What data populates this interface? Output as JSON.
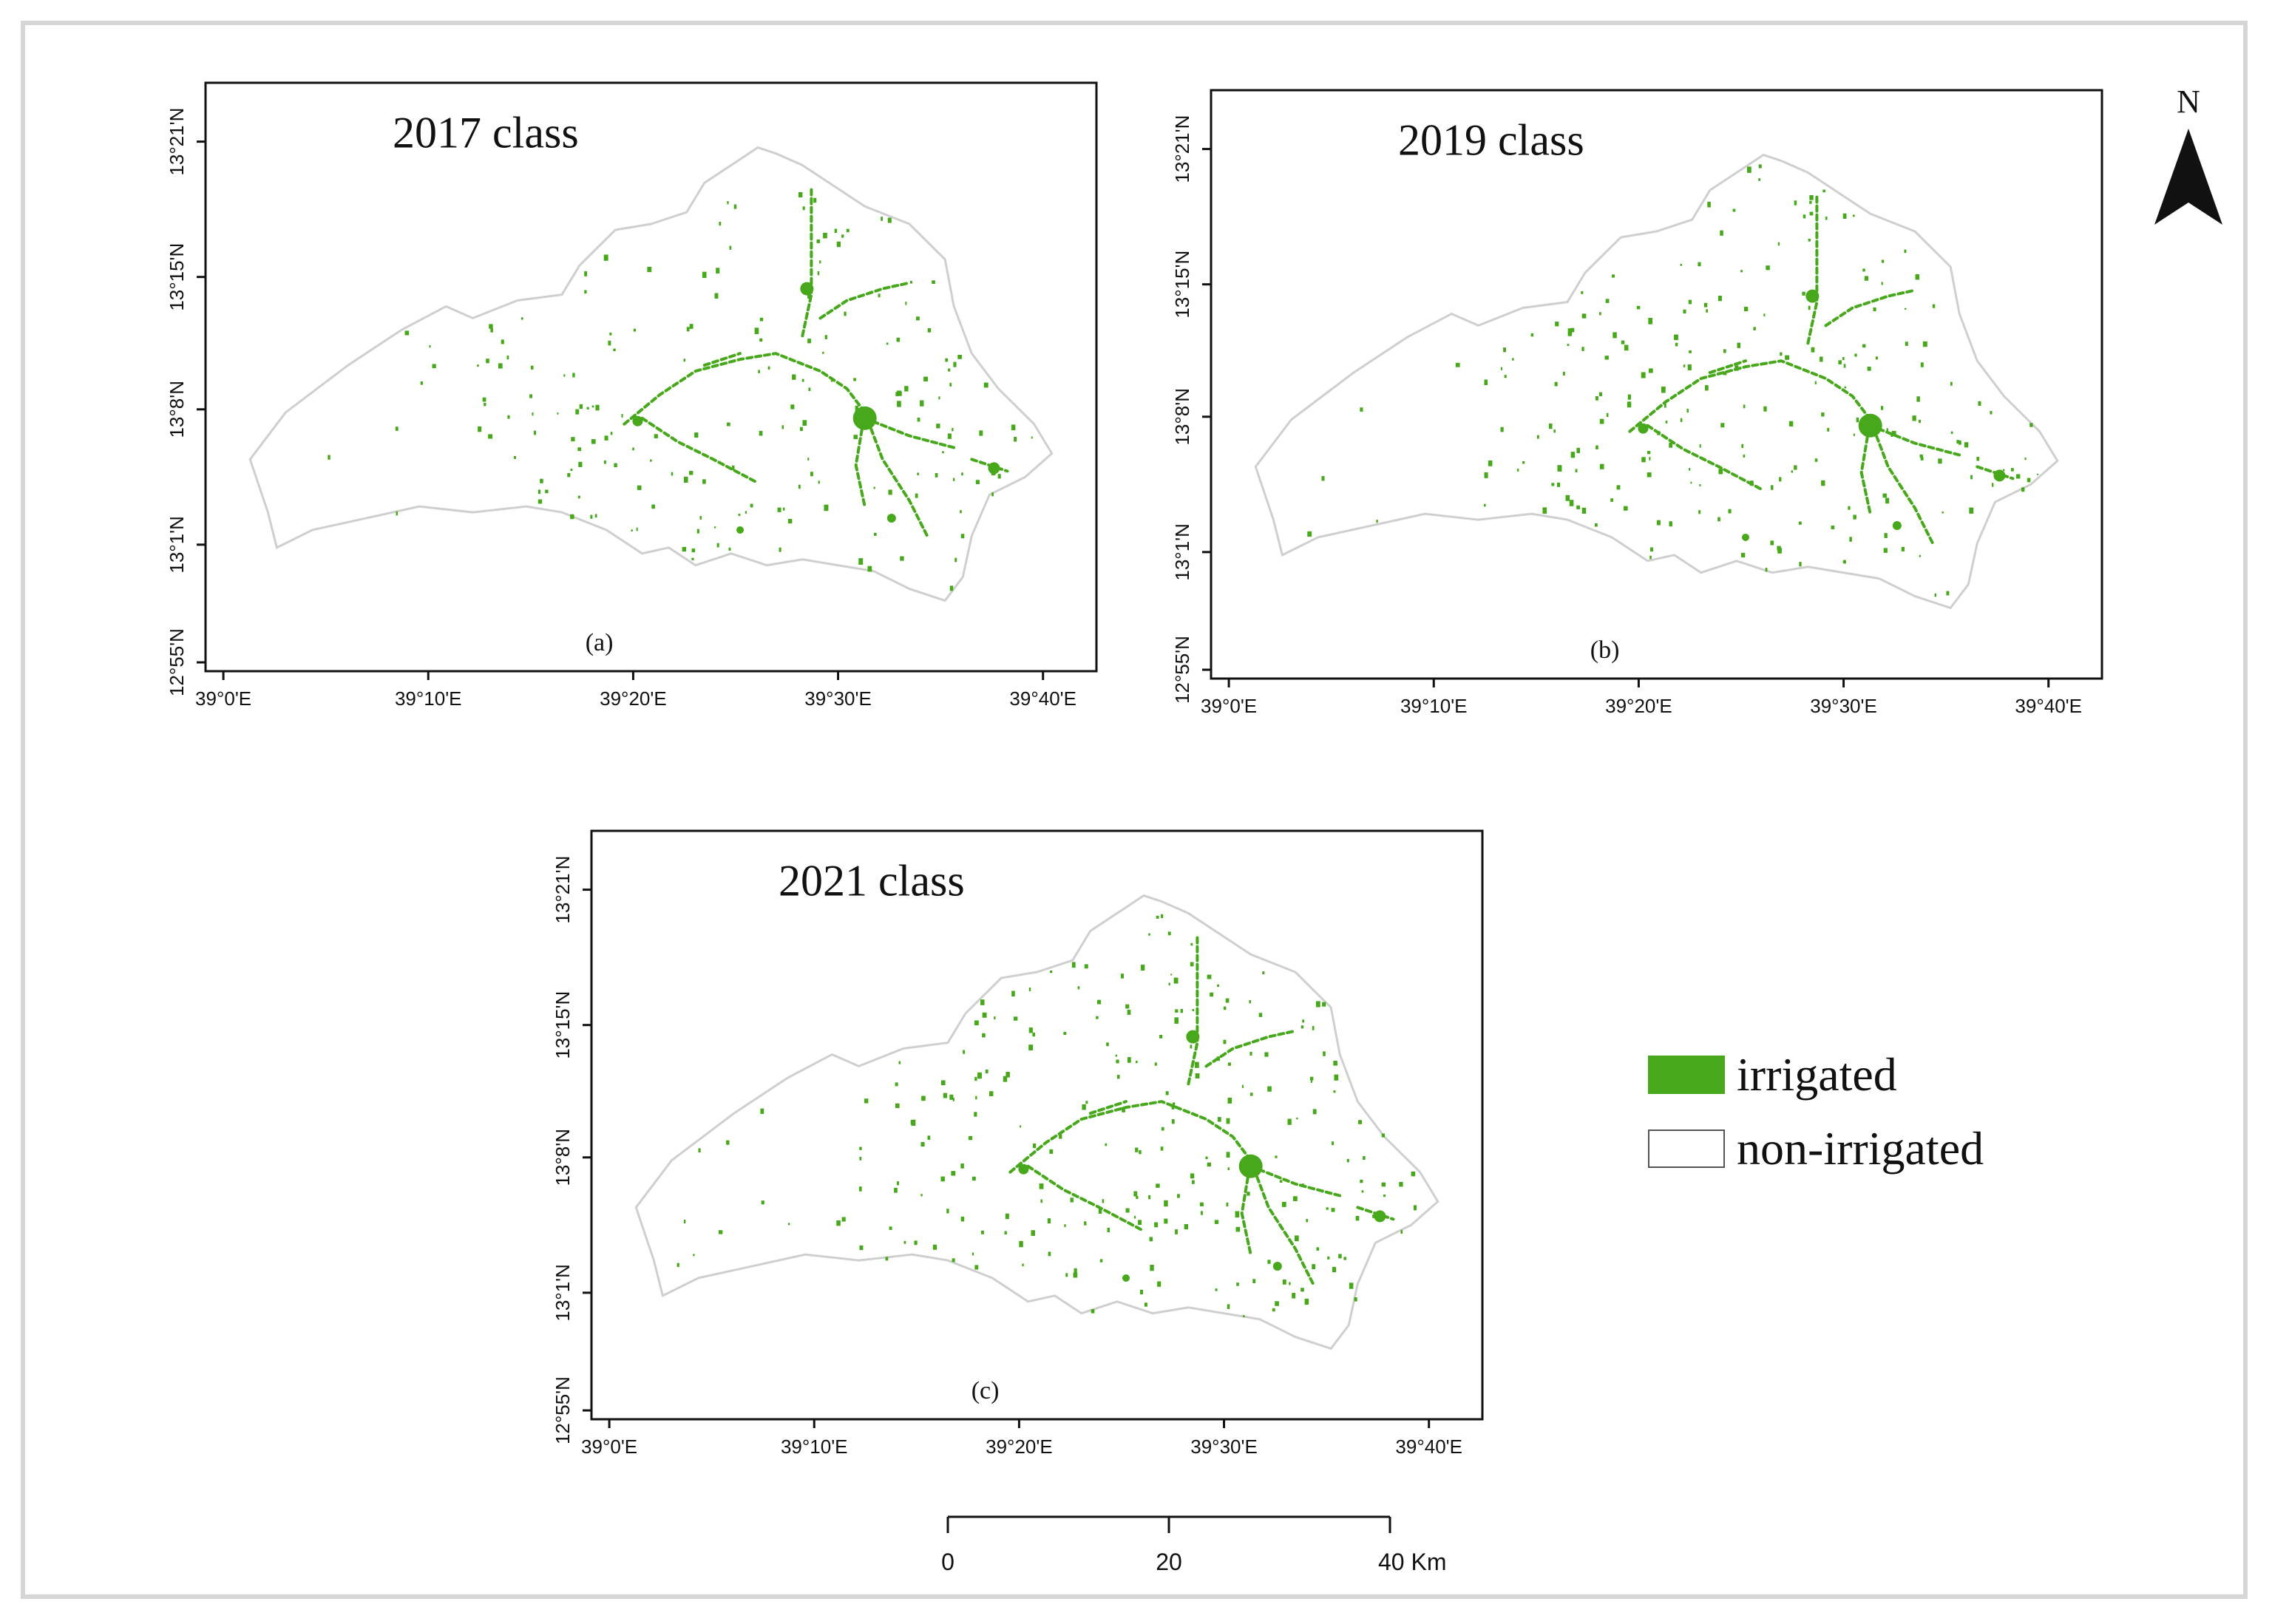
{
  "panels": [
    {
      "id": "a",
      "title": "2017 class",
      "label": "(a)"
    },
    {
      "id": "b",
      "title": "2019 class",
      "label": "(b)"
    },
    {
      "id": "c",
      "title": "2021 class",
      "label": "(c)"
    }
  ],
  "lon_ticks": [
    "39°0'E",
    "39°10'E",
    "39°20'E",
    "39°30'E",
    "39°40'E"
  ],
  "lat_ticks": [
    "12°55'N",
    "13°1'N",
    "13°8'N",
    "13°15'N",
    "13°21'N"
  ],
  "north_arrow": {
    "label": "N",
    "icon": "north-arrow-icon"
  },
  "scale_bar": {
    "ticks": [
      "0",
      "20",
      "40 Km"
    ]
  },
  "legend": [
    {
      "label": "irrigated",
      "color": "#48a81c"
    },
    {
      "label": "non-irrigated",
      "color": "#ffffff"
    }
  ],
  "colors": {
    "irrigated": "#48a81c",
    "boundary": "#cfcfcf",
    "frame": "#111111"
  }
}
